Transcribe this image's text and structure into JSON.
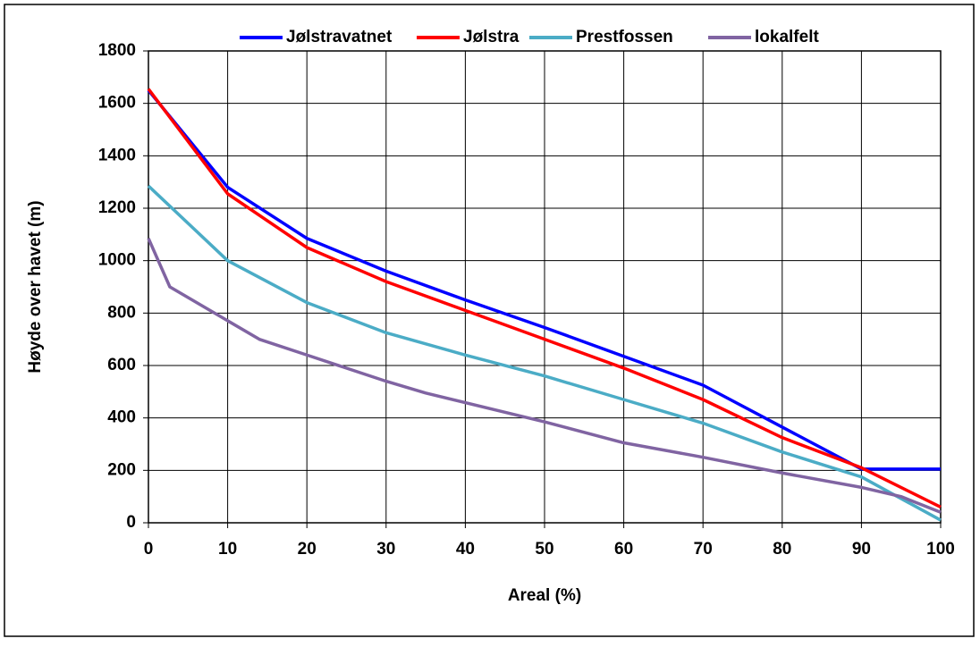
{
  "chart_data": {
    "type": "line",
    "x_label": "Areal (%)",
    "y_label": "Høyde over havet (m)",
    "xlim": [
      0,
      100
    ],
    "xticks": [
      0,
      10,
      20,
      30,
      40,
      50,
      60,
      70,
      80,
      90,
      100
    ],
    "ylim": [
      0,
      1800
    ],
    "yticks": [
      0,
      200,
      400,
      600,
      800,
      1000,
      1200,
      1400,
      1600,
      1800
    ],
    "grid": true,
    "legend": "top",
    "series": [
      {
        "name": "Jølstravatnet",
        "color": "#0000ff",
        "x": [
          0,
          10,
          20,
          30,
          40,
          50,
          60,
          70,
          80,
          90,
          100
        ],
        "values": [
          1650,
          1280,
          1085,
          960,
          850,
          745,
          635,
          525,
          365,
          205,
          205
        ]
      },
      {
        "name": "Jølstra",
        "color": "#ff0000",
        "x": [
          0,
          10,
          20,
          30,
          40,
          50,
          60,
          70,
          80,
          90,
          100
        ],
        "values": [
          1655,
          1255,
          1050,
          920,
          810,
          700,
          590,
          470,
          325,
          210,
          60
        ]
      },
      {
        "name": "Prestfossen",
        "color": "#4bacc6",
        "x": [
          0,
          10,
          20,
          30,
          40,
          50,
          60,
          70,
          80,
          90,
          100
        ],
        "values": [
          1285,
          1000,
          840,
          725,
          640,
          560,
          470,
          380,
          270,
          175,
          10
        ]
      },
      {
        "name": "lokalfelt",
        "color": "#8064a2",
        "x": [
          0,
          2.7,
          14,
          20,
          30,
          35,
          50,
          60,
          70,
          80,
          90,
          95,
          100
        ],
        "values": [
          1085,
          900,
          700,
          640,
          540,
          495,
          385,
          305,
          250,
          190,
          135,
          100,
          40
        ]
      }
    ]
  }
}
